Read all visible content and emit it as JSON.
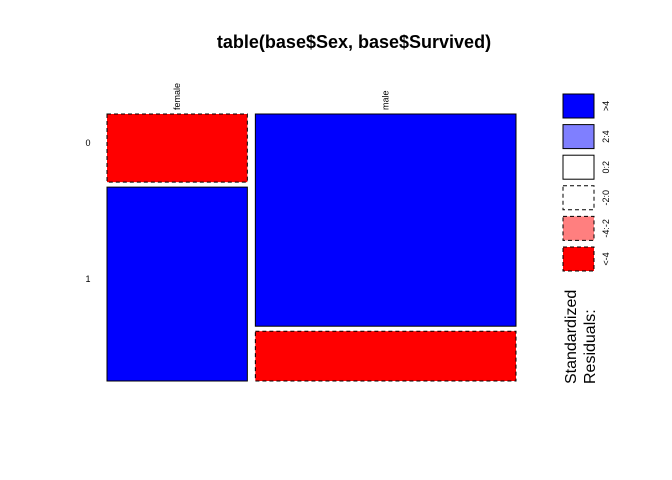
{
  "chart_data": {
    "type": "mosaic",
    "title": "table(base$Sex, base$Survived)",
    "x_variable_levels": [
      "female",
      "male"
    ],
    "y_variable_levels": [
      "0",
      "1"
    ],
    "cells": [
      {
        "sex": "female",
        "survived": "0",
        "proportion_within_sex": 0.26,
        "residual_class": "<-4"
      },
      {
        "sex": "female",
        "survived": "1",
        "proportion_within_sex": 0.74,
        "residual_class": ">4"
      },
      {
        "sex": "male",
        "survived": "0",
        "proportion_within_sex": 0.81,
        "residual_class": ">4"
      },
      {
        "sex": "male",
        "survived": "1",
        "proportion_within_sex": 0.19,
        "residual_class": "<-4"
      }
    ],
    "column_proportions": {
      "female": 0.35,
      "male": 0.65
    },
    "legend": {
      "title_lines": [
        "Standardized",
        "Residuals:"
      ],
      "placement": "right",
      "entries": [
        {
          "label": ">4",
          "fill": "#0000FF",
          "dashed": false
        },
        {
          "label": "2:4",
          "fill": "#7F7FFF",
          "dashed": false
        },
        {
          "label": "0:2",
          "fill": "#FFFFFF",
          "dashed": false
        },
        {
          "label": "-2:0",
          "fill": "#FFFFFF",
          "dashed": true
        },
        {
          "label": "-4:-2",
          "fill": "#FF7F7F",
          "dashed": true
        },
        {
          "label": "<-4",
          "fill": "#FF0000",
          "dashed": true
        }
      ]
    },
    "colors": {
      "positive_strong": "#0000FF",
      "negative_strong": "#FF0000"
    }
  }
}
